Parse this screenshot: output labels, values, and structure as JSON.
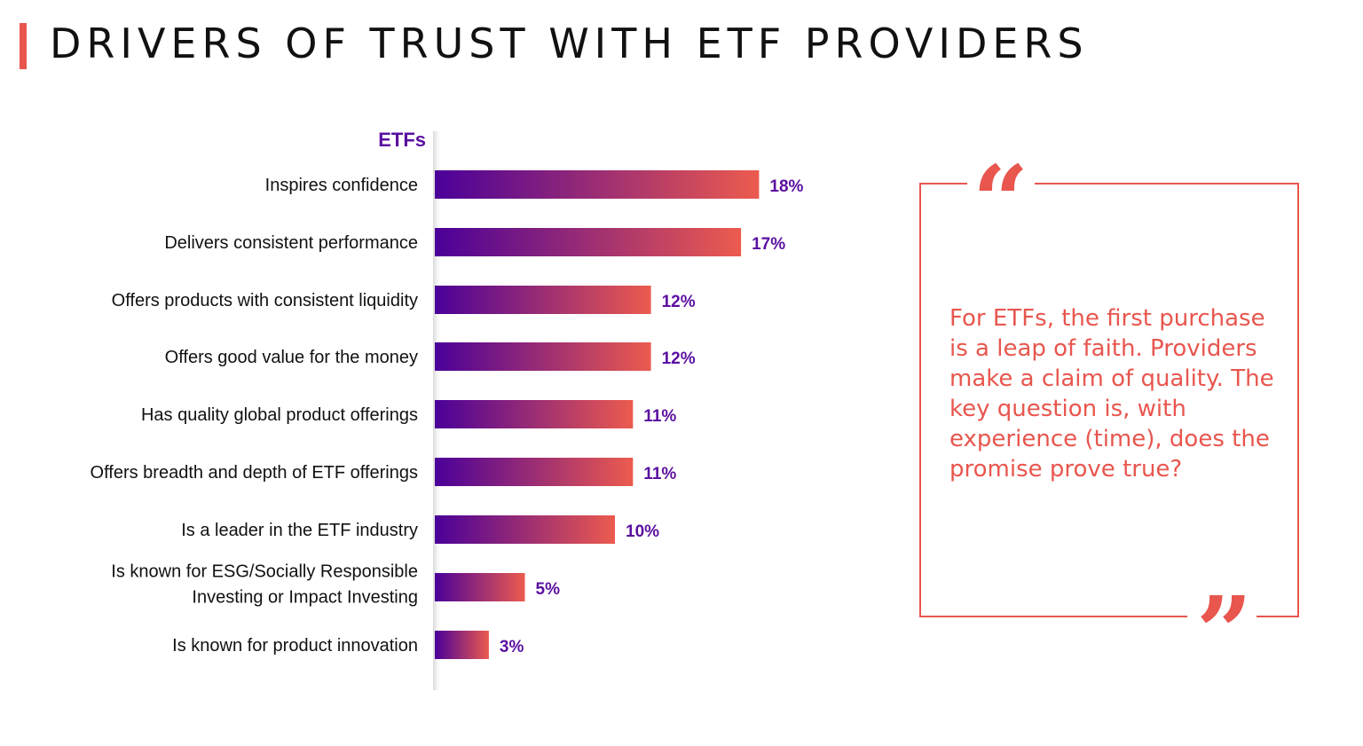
{
  "title": "DRIVERS OF TRUST WITH ETF PROVIDERS",
  "colors": {
    "accent": "#e8564e",
    "bar_start": "#4a0099",
    "bar_end": "#ec5b4e",
    "value_label": "#5b0fa0",
    "series_label": "#5b0fa0"
  },
  "chart_data": {
    "type": "bar",
    "orientation": "horizontal",
    "series": [
      {
        "name": "ETFs",
        "values": [
          18,
          17,
          12,
          12,
          11,
          11,
          10,
          5,
          3
        ]
      }
    ],
    "categories": [
      [
        "Inspires confidence"
      ],
      [
        "Delivers consistent performance"
      ],
      [
        "Offers products with consistent liquidity"
      ],
      [
        "Offers good value for the money"
      ],
      [
        "Has quality global product offerings"
      ],
      [
        "Offers breadth and depth of ETF offerings"
      ],
      [
        "Is a leader in the ETF industry"
      ],
      [
        "Is known for ESG/Socially Responsible",
        "Investing or Impact Investing"
      ],
      [
        "Is known for product innovation"
      ]
    ],
    "value_labels": [
      "18%",
      "17%",
      "12%",
      "12%",
      "11%",
      "11%",
      "10%",
      "5%",
      "3%"
    ],
    "unit": "%",
    "grid": false
  },
  "quote": {
    "open_mark": "“",
    "close_mark": "”",
    "text": "For ETFs, the first purchase is a leap of faith. Providers make a claim of quality. The key question is, with experience (time), does the promise prove true?"
  }
}
